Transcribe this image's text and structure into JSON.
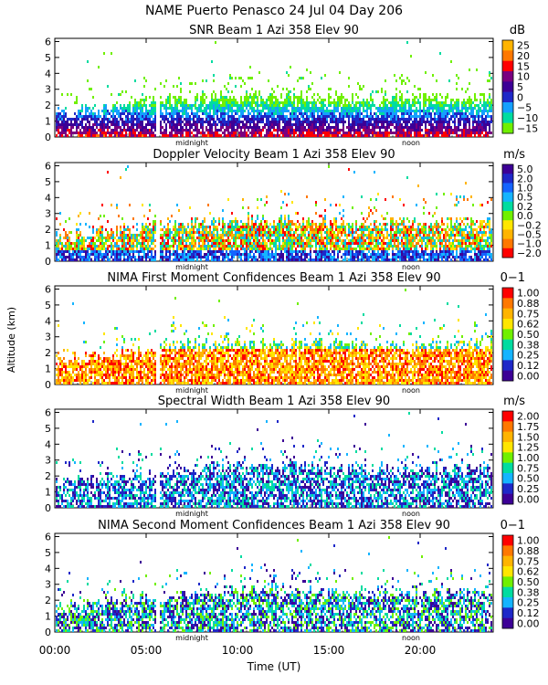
{
  "title": "NAME Puerto Penasco  24 Jul 04 Day 206",
  "ylabel": "Altitude (km)",
  "xlabel": "Time (UT)",
  "x_ticks": [
    "00:00",
    "05:00",
    "10:00",
    "15:00",
    "20:00"
  ],
  "x_tick_hours": [
    0,
    5,
    10,
    15,
    20
  ],
  "marker_labels": {
    "midnight": "midnight",
    "noon": "noon"
  },
  "marker_hours": {
    "midnight": 7.5,
    "noon": 19.5
  },
  "y_ticks": [
    "0",
    "1",
    "2",
    "3",
    "4",
    "5",
    "6"
  ],
  "chart_data": [
    {
      "type": "heatmap",
      "title": "SNR Beam 1 Azi 358 Elev 90",
      "unit": "dB",
      "xlim": [
        0,
        24
      ],
      "ylim": [
        0,
        6.2
      ],
      "colorbar_labels": [
        "25",
        "20",
        "15",
        "10",
        "5",
        "0",
        "−5",
        "−10",
        "−15"
      ],
      "colorbar_colors": [
        "#ffb400",
        "#ff7800",
        "#ff0000",
        "#7a0080",
        "#3c0096",
        "#1e28c8",
        "#14a0ff",
        "#00dca0",
        "#70f000"
      ]
    },
    {
      "type": "heatmap",
      "title": "Doppler Velocity Beam 1 Azi 358 Elev 90",
      "unit": "m/s",
      "xlim": [
        0,
        24
      ],
      "ylim": [
        0,
        6.2
      ],
      "colorbar_labels": [
        "5.0",
        "2.0",
        "1.0",
        "0.5",
        "0.2",
        "0.0",
        "−0.2",
        "−0.5",
        "−1.0",
        "−2.0"
      ],
      "colorbar_colors": [
        "#3c0096",
        "#1e28c8",
        "#1464ff",
        "#14b4ff",
        "#00dca0",
        "#70f000",
        "#ffe600",
        "#ffb400",
        "#ff7800",
        "#ff0000"
      ]
    },
    {
      "type": "heatmap",
      "title": "NIMA First Moment Confidences Beam 1 Azi 358 Elev 90",
      "unit": "0−1",
      "xlim": [
        0,
        24
      ],
      "ylim": [
        0,
        6.2
      ],
      "colorbar_labels": [
        "1.00",
        "0.88",
        "0.75",
        "0.62",
        "0.50",
        "0.38",
        "0.25",
        "0.12",
        "0.00"
      ],
      "colorbar_colors": [
        "#ff0000",
        "#ff7800",
        "#ffb400",
        "#ffe600",
        "#70f000",
        "#00dca0",
        "#14b4ff",
        "#1e28c8",
        "#3c0096"
      ]
    },
    {
      "type": "heatmap",
      "title": "Spectral Width Beam 1 Azi 358 Elev 90",
      "unit": "m/s",
      "xlim": [
        0,
        24
      ],
      "ylim": [
        0,
        6.2
      ],
      "colorbar_labels": [
        "2.00",
        "1.75",
        "1.50",
        "1.25",
        "1.00",
        "0.75",
        "0.50",
        "0.25",
        "0.00"
      ],
      "colorbar_colors": [
        "#ff0000",
        "#ff7800",
        "#ffb400",
        "#ffe600",
        "#70f000",
        "#00dca0",
        "#14b4ff",
        "#1e28c8",
        "#3c0096"
      ]
    },
    {
      "type": "heatmap",
      "title": "NIMA Second Moment Confidences Beam 1 Azi 358 Elev 90",
      "unit": "0−1",
      "xlim": [
        0,
        24
      ],
      "ylim": [
        0,
        6.2
      ],
      "colorbar_labels": [
        "1.00",
        "0.88",
        "0.75",
        "0.62",
        "0.50",
        "0.38",
        "0.25",
        "0.12",
        "0.00"
      ],
      "colorbar_colors": [
        "#ff0000",
        "#ff7800",
        "#ffb400",
        "#ffe600",
        "#70f000",
        "#00dca0",
        "#14b4ff",
        "#1e28c8",
        "#3c0096"
      ]
    }
  ]
}
